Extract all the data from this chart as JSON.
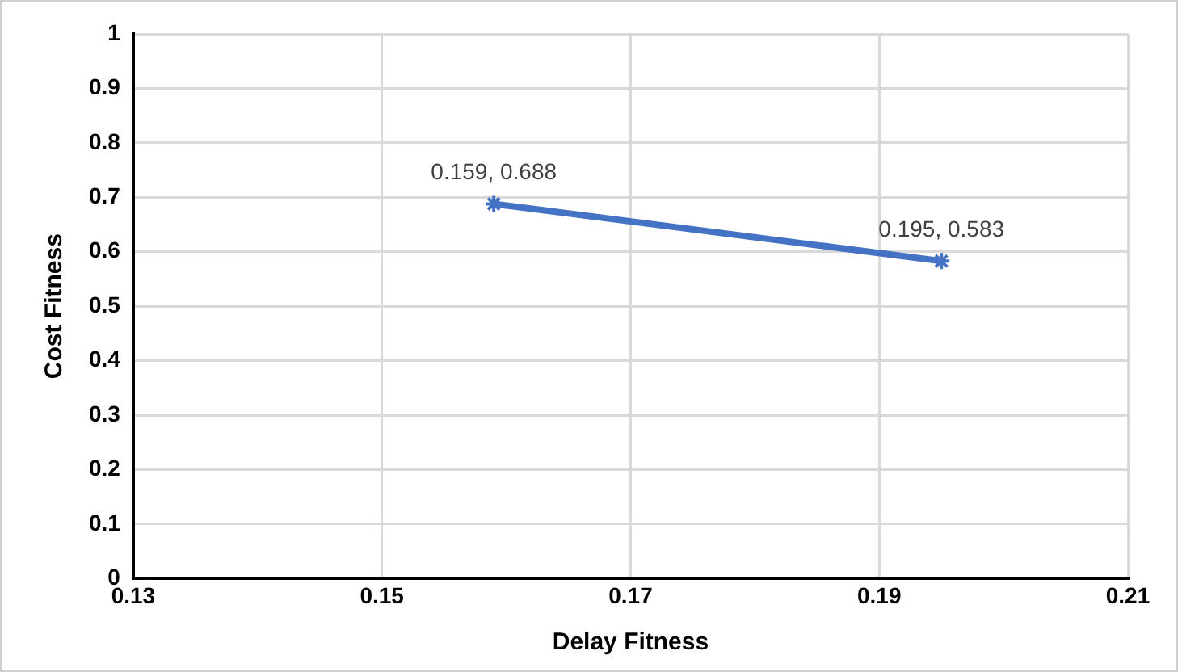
{
  "chart_data": {
    "type": "line",
    "xlabel": "Delay Fitness",
    "ylabel": "Cost Fitness",
    "x": [
      0.159,
      0.195
    ],
    "series": [
      {
        "color": "#4472c4",
        "values": [
          0.688,
          0.583
        ],
        "value_labels": [
          "0.159, 0.688",
          "0.195, 0.583"
        ]
      }
    ],
    "xlim": [
      0.13,
      0.21
    ],
    "xticks": [
      0.13,
      0.15,
      0.17,
      0.19,
      0.21
    ],
    "ylim": [
      0,
      1
    ],
    "yticks": [
      0,
      0.1,
      0.2,
      0.3,
      0.4,
      0.5,
      0.6,
      0.7,
      0.8,
      0.9,
      1
    ],
    "grid": true,
    "legend": false,
    "marker": "cross",
    "line_style": "solid"
  }
}
